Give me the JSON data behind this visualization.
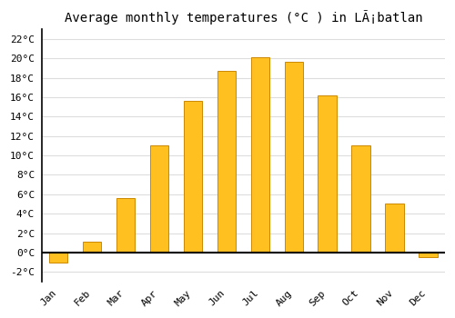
{
  "title": "Average monthly temperatures (°C ) in LÃ¡batlan",
  "months": [
    "Jan",
    "Feb",
    "Mar",
    "Apr",
    "May",
    "Jun",
    "Jul",
    "Aug",
    "Sep",
    "Oct",
    "Nov",
    "Dec"
  ],
  "temperatures": [
    -1.0,
    1.1,
    5.6,
    11.0,
    15.6,
    18.7,
    20.1,
    19.7,
    16.2,
    11.0,
    5.0,
    -0.5
  ],
  "bar_color": "#FFC020",
  "bar_edge_color": "#CC8800",
  "ylim": [
    -3,
    23
  ],
  "yticks": [
    -2,
    0,
    2,
    4,
    6,
    8,
    10,
    12,
    14,
    16,
    18,
    20,
    22
  ],
  "grid_color": "#dddddd",
  "background_color": "#ffffff",
  "title_fontsize": 10,
  "tick_fontsize": 8,
  "bar_width": 0.55
}
